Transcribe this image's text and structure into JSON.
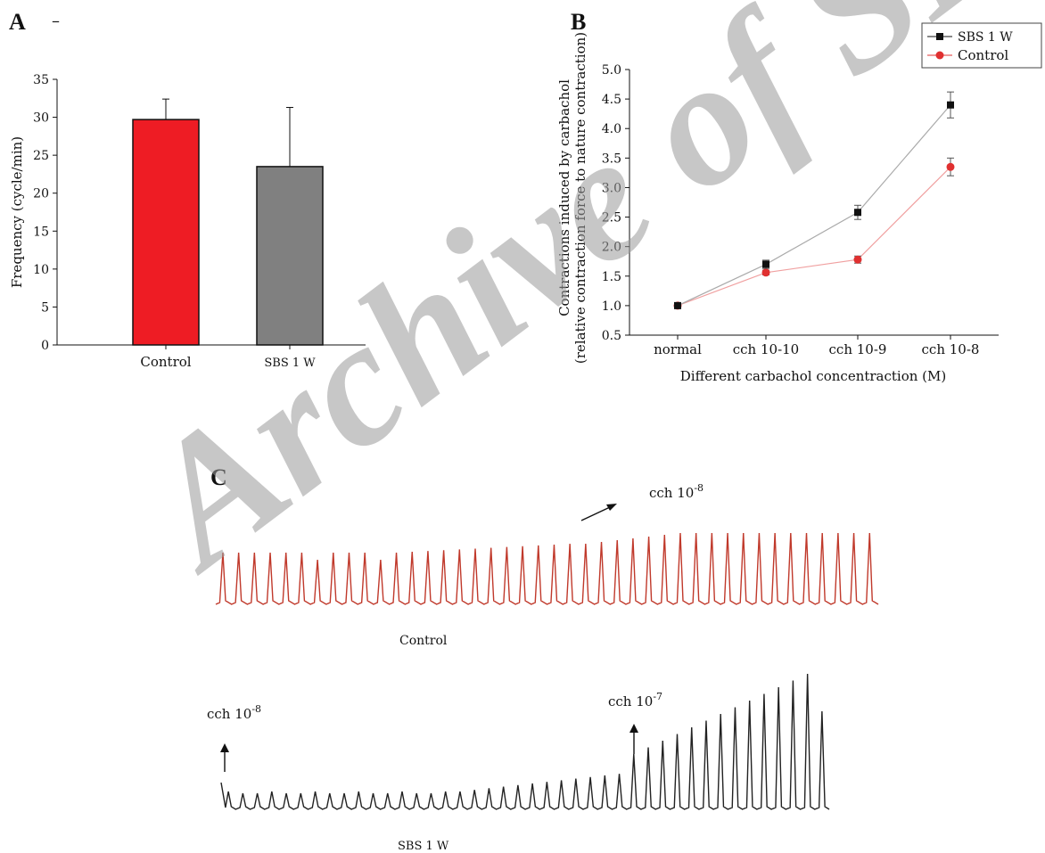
{
  "watermark": "Archive of SID",
  "panel_a_dash": "–",
  "chart_data": [
    {
      "panel": "A",
      "type": "bar",
      "categories": [
        "Control",
        "SBS 1 W"
      ],
      "values": [
        29.7,
        23.5
      ],
      "errors": [
        2.7,
        7.8
      ],
      "colors": [
        "#ee1c24",
        "#808080"
      ],
      "ylabel": "Frequency (cycle/min)",
      "xlabel": "",
      "ylim": [
        0,
        35
      ],
      "yticks": [
        "0",
        "5",
        "10",
        "15",
        "20",
        "25",
        "30",
        "35"
      ],
      "grid": false
    },
    {
      "panel": "B",
      "type": "line",
      "categories": [
        "normal",
        "cch 10-10",
        "cch 10-9",
        "cch 10-8"
      ],
      "ylabel_line1": "Contractions induced by carbachol",
      "ylabel_line2": "(relative contraction force to nature contraction)",
      "xlabel": "Different carbachol concentraction (M)",
      "ylim": [
        0.5,
        5.0
      ],
      "yticks": [
        "0.5",
        "1.0",
        "1.5",
        "2.0",
        "2.5",
        "3.0",
        "3.5",
        "4.0",
        "4.5",
        "5.0"
      ],
      "legend_position": "top-right",
      "grid": false,
      "series": [
        {
          "name": "SBS 1 W",
          "values": [
            1.0,
            1.7,
            2.58,
            4.4
          ],
          "errors": [
            0.03,
            0.07,
            0.12,
            0.22
          ],
          "color": "#111111",
          "marker": "square"
        },
        {
          "name": "Control",
          "values": [
            1.0,
            1.56,
            1.78,
            3.35
          ],
          "errors": [
            0.03,
            0.04,
            0.06,
            0.15
          ],
          "color": "#e03030",
          "marker": "circle"
        }
      ]
    },
    {
      "panel": "C",
      "type": "line",
      "traces": [
        {
          "label": "Control",
          "annotation_base": "cch 10",
          "annotation_exp": "-8",
          "color": "#c0392b"
        },
        {
          "label": "SBS 1 W",
          "annotation1_base": "cch 10",
          "annotation1_exp": "-8",
          "annotation2_base": "cch 10",
          "annotation2_exp": "-7",
          "color": "#222222"
        }
      ]
    }
  ]
}
